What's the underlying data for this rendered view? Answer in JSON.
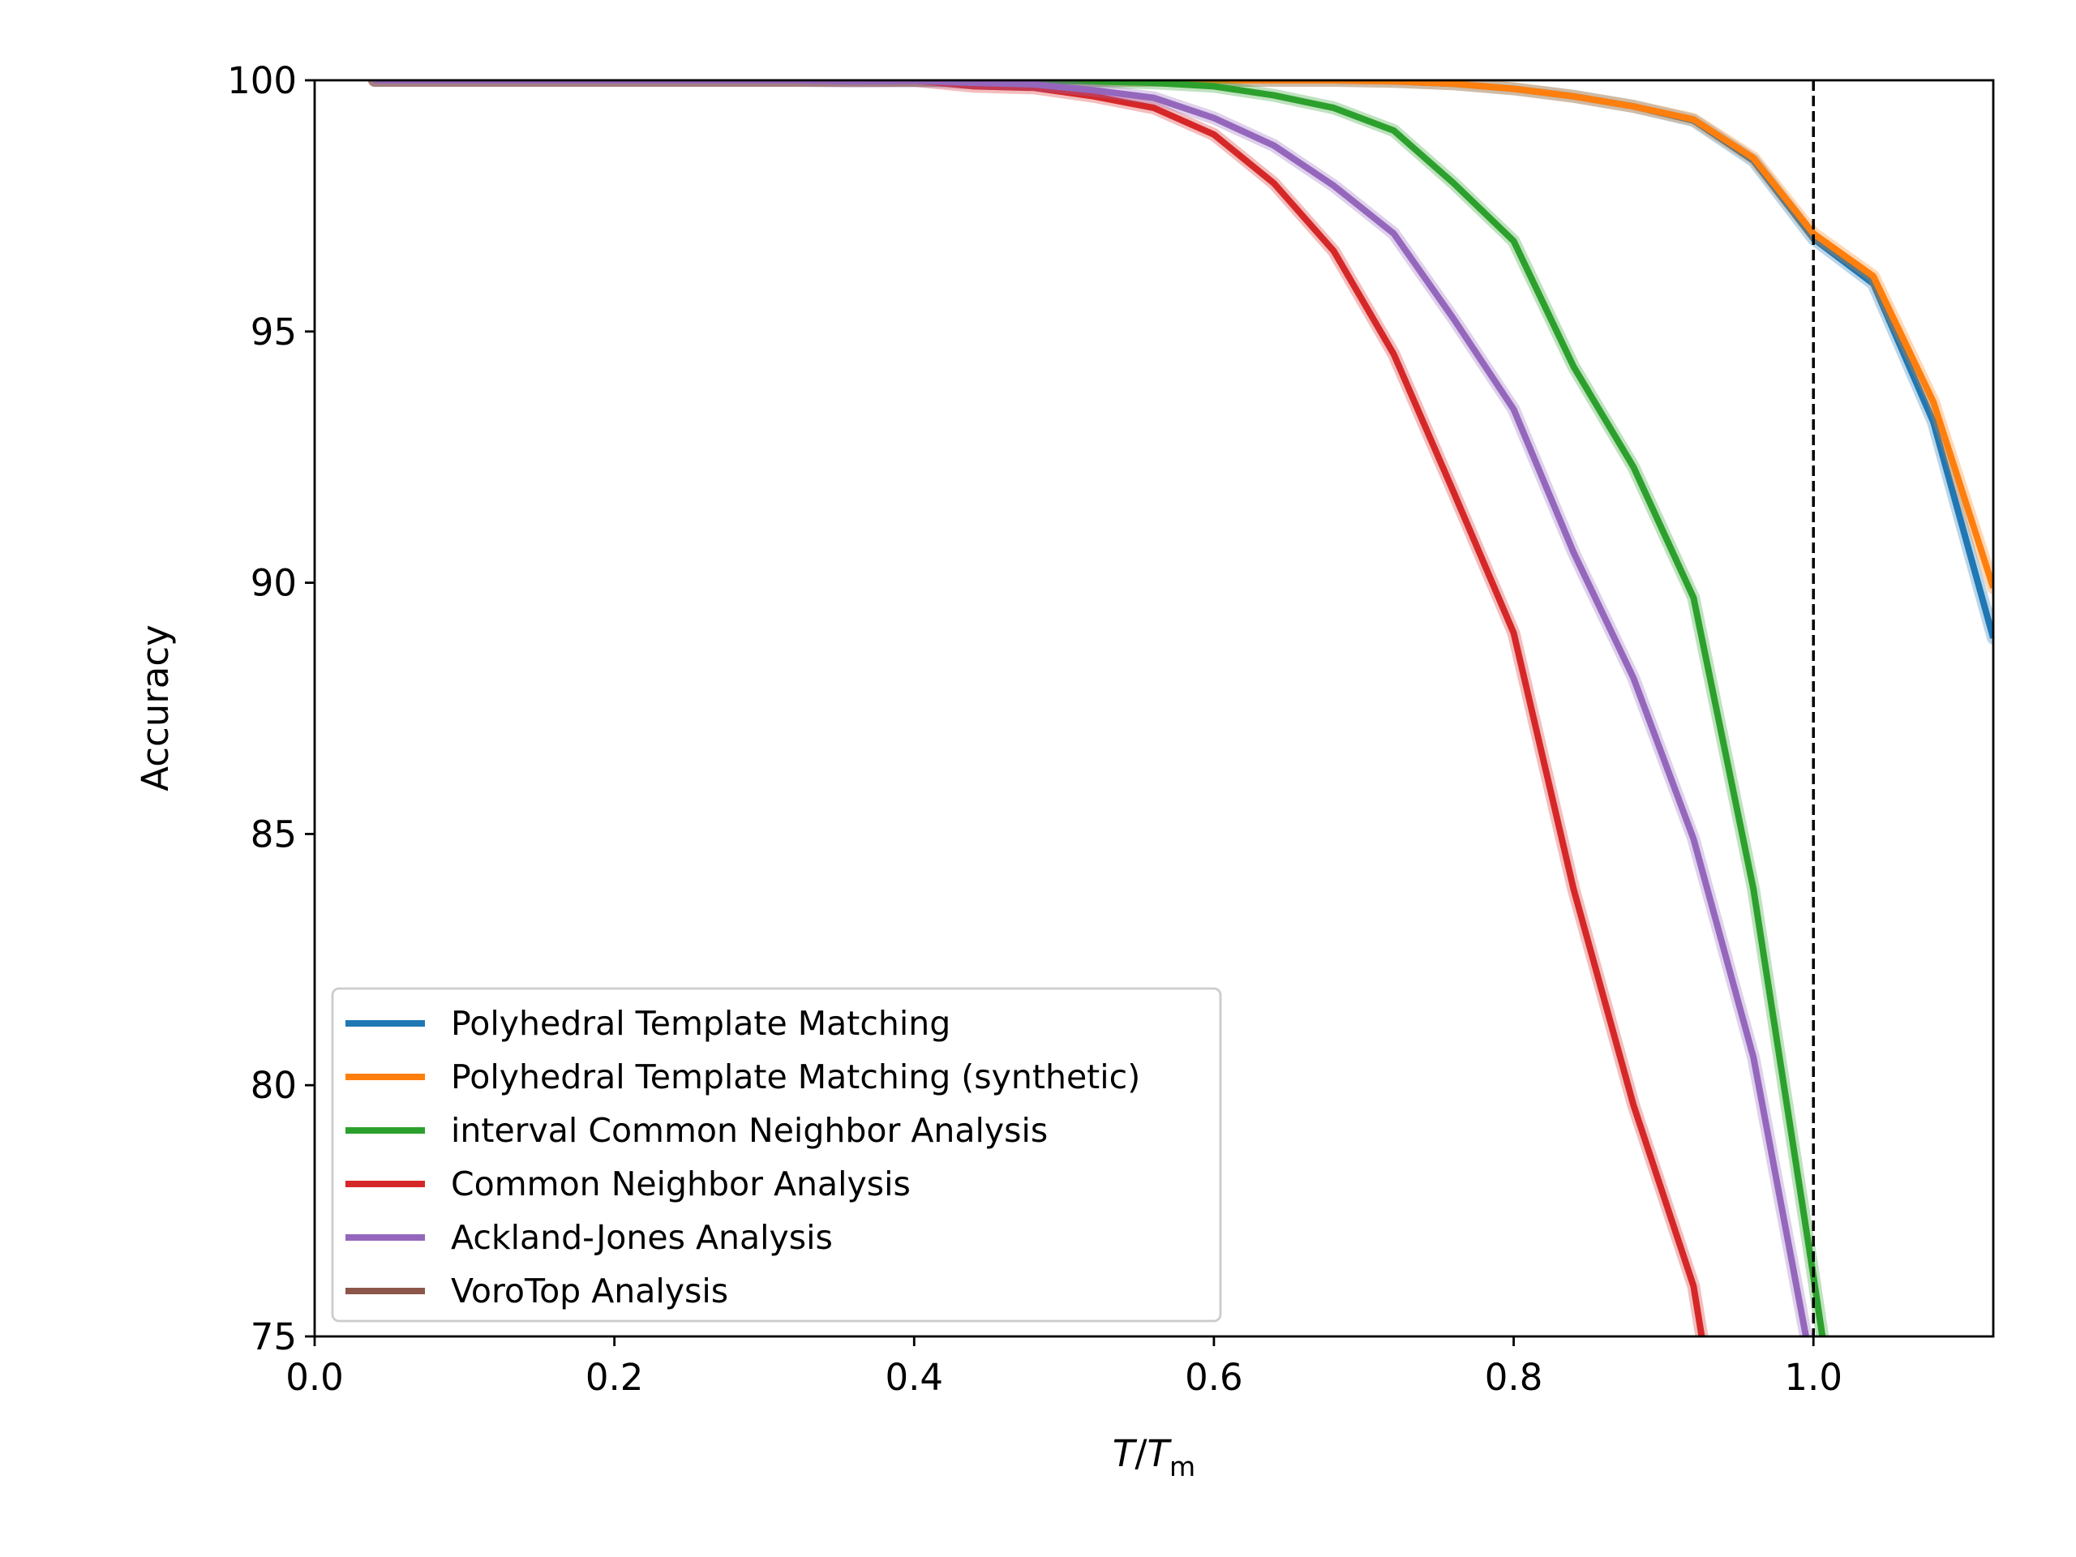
{
  "chart_data": {
    "type": "line",
    "title": "",
    "xlabel_var": "T",
    "xlabel_sep": "/",
    "xlabel_denom": "T",
    "xlabel_sub": "m",
    "ylabel": "Accuracy",
    "xlim": [
      0.0,
      1.12
    ],
    "ylim": [
      75,
      100
    ],
    "x_ticks": [
      0.0,
      0.2,
      0.4,
      0.6,
      0.8,
      1.0
    ],
    "x_tick_labels": [
      "0.0",
      "0.2",
      "0.4",
      "0.6",
      "0.8",
      "1.0"
    ],
    "y_ticks": [
      75,
      80,
      85,
      90,
      95,
      100
    ],
    "y_tick_labels": [
      "75",
      "80",
      "85",
      "90",
      "95",
      "100"
    ],
    "reference_line": {
      "x": 1.0,
      "style": "dashed",
      "color": "#000000"
    },
    "legend_position": "lower-left",
    "grid": false,
    "series": [
      {
        "name": "Polyhedral Template Matching",
        "color": "#1f77b4",
        "x": [
          0.04,
          0.08,
          0.12,
          0.16,
          0.2,
          0.24,
          0.28,
          0.32,
          0.36,
          0.4,
          0.44,
          0.48,
          0.52,
          0.56,
          0.6,
          0.64,
          0.68,
          0.72,
          0.76,
          0.8,
          0.84,
          0.88,
          0.92,
          0.96,
          1.0,
          1.04,
          1.08,
          1.12
        ],
        "y": [
          100,
          100,
          100,
          100,
          100,
          100,
          100,
          100,
          100,
          100,
          100,
          100,
          100,
          100,
          100,
          100,
          100,
          99.98,
          99.93,
          99.83,
          99.68,
          99.48,
          99.2,
          98.4,
          96.85,
          95.95,
          93.2,
          88.9
        ]
      },
      {
        "name": "Polyhedral Template Matching (synthetic)",
        "color": "#ff7f0e",
        "x": [
          0.04,
          0.08,
          0.12,
          0.16,
          0.2,
          0.24,
          0.28,
          0.32,
          0.36,
          0.4,
          0.44,
          0.48,
          0.52,
          0.56,
          0.6,
          0.64,
          0.68,
          0.72,
          0.76,
          0.8,
          0.84,
          0.88,
          0.92,
          0.96,
          1.0,
          1.04,
          1.08,
          1.12
        ],
        "y": [
          100,
          100,
          100,
          100,
          100,
          100,
          100,
          100,
          100,
          100,
          100,
          100,
          100,
          100,
          100,
          100,
          100,
          99.98,
          99.93,
          99.83,
          99.68,
          99.48,
          99.22,
          98.45,
          96.95,
          96.1,
          93.6,
          89.9
        ]
      },
      {
        "name": "interval Common Neighbor Analysis",
        "color": "#2ca02c",
        "x": [
          0.04,
          0.08,
          0.12,
          0.16,
          0.2,
          0.24,
          0.28,
          0.32,
          0.36,
          0.4,
          0.44,
          0.48,
          0.52,
          0.56,
          0.6,
          0.64,
          0.68,
          0.72,
          0.76,
          0.8,
          0.84,
          0.88,
          0.92,
          0.96,
          1.0,
          1.006
        ],
        "y": [
          100,
          100,
          100,
          100,
          100,
          100,
          100,
          100,
          100,
          100,
          100,
          100,
          99.98,
          99.95,
          99.88,
          99.7,
          99.45,
          99.0,
          97.95,
          96.8,
          94.3,
          92.3,
          89.7,
          83.9,
          76.2,
          75.0
        ]
      },
      {
        "name": "Common Neighbor Analysis",
        "color": "#d62728",
        "x": [
          0.04,
          0.08,
          0.12,
          0.16,
          0.2,
          0.24,
          0.28,
          0.32,
          0.36,
          0.4,
          0.44,
          0.48,
          0.52,
          0.56,
          0.6,
          0.64,
          0.68,
          0.72,
          0.76,
          0.8,
          0.84,
          0.88,
          0.92,
          0.9255
        ],
        "y": [
          100,
          100,
          100,
          100,
          100,
          100,
          100,
          100,
          100,
          100,
          99.88,
          99.85,
          99.68,
          99.45,
          98.92,
          97.95,
          96.6,
          94.55,
          91.8,
          89.0,
          83.9,
          79.6,
          76.0,
          75.0
        ]
      },
      {
        "name": "Ackland-Jones Analysis",
        "color": "#9467bd",
        "x": [
          0.04,
          0.08,
          0.12,
          0.16,
          0.2,
          0.24,
          0.28,
          0.32,
          0.36,
          0.4,
          0.44,
          0.48,
          0.52,
          0.56,
          0.6,
          0.64,
          0.68,
          0.72,
          0.76,
          0.8,
          0.84,
          0.88,
          0.92,
          0.96,
          0.995
        ],
        "y": [
          100,
          100,
          100,
          100,
          100,
          100,
          100,
          100,
          99.98,
          99.99,
          99.95,
          99.92,
          99.8,
          99.65,
          99.25,
          98.7,
          97.9,
          96.95,
          95.25,
          93.45,
          90.6,
          88.1,
          84.9,
          80.55,
          75.0
        ]
      },
      {
        "name": "VoroTop Analysis",
        "color": "#8c564b",
        "x": [],
        "y": []
      }
    ]
  }
}
